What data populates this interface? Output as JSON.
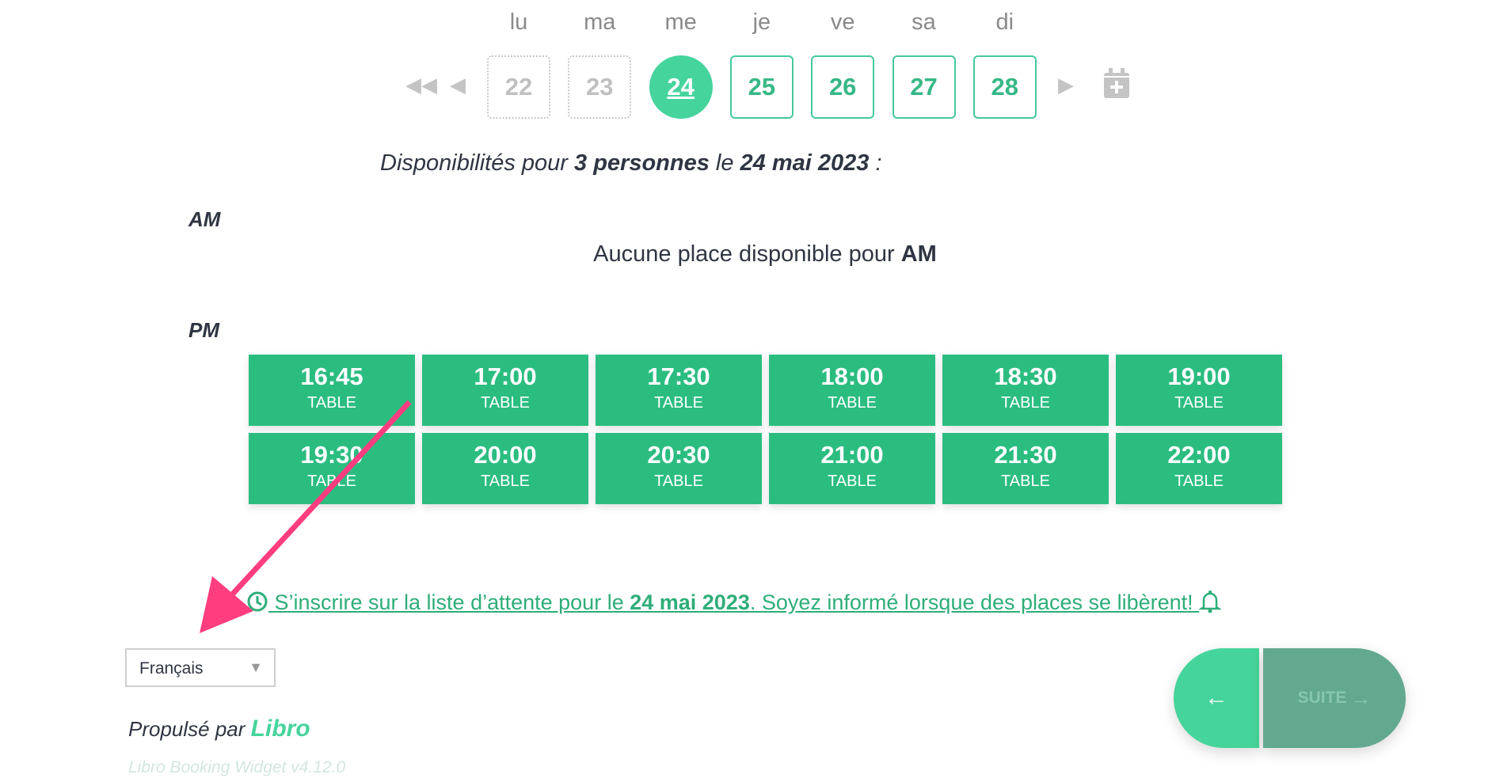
{
  "calendar": {
    "days": [
      {
        "label": "lu",
        "date": "22",
        "state": "past"
      },
      {
        "label": "ma",
        "date": "23",
        "state": "past"
      },
      {
        "label": "me",
        "date": "24",
        "state": "selected"
      },
      {
        "label": "je",
        "date": "25",
        "state": "available"
      },
      {
        "label": "ve",
        "date": "26",
        "state": "available"
      },
      {
        "label": "sa",
        "date": "27",
        "state": "available"
      },
      {
        "label": "di",
        "date": "28",
        "state": "available"
      }
    ],
    "icons": {
      "first": "double-chevron-left-icon",
      "prev": "chevron-left-icon",
      "next": "chevron-right-icon",
      "calendar": "calendar-plus-icon"
    }
  },
  "summary": {
    "prefix": "Disponibilités pour ",
    "people": "3 personnes",
    "mid": " le ",
    "date": "24 mai 2023",
    "suffix": " :"
  },
  "am": {
    "label": "AM",
    "none_prefix": "Aucune place disponible pour ",
    "none_bold": "AM"
  },
  "pm": {
    "label": "PM",
    "slots": [
      {
        "time": "16:45",
        "type": "TABLE"
      },
      {
        "time": "17:00",
        "type": "TABLE"
      },
      {
        "time": "17:30",
        "type": "TABLE"
      },
      {
        "time": "18:00",
        "type": "TABLE"
      },
      {
        "time": "18:30",
        "type": "TABLE"
      },
      {
        "time": "19:00",
        "type": "TABLE"
      },
      {
        "time": "19:30",
        "type": "TABLE"
      },
      {
        "time": "20:00",
        "type": "TABLE"
      },
      {
        "time": "20:30",
        "type": "TABLE"
      },
      {
        "time": "21:00",
        "type": "TABLE"
      },
      {
        "time": "21:30",
        "type": "TABLE"
      },
      {
        "time": "22:00",
        "type": "TABLE"
      }
    ]
  },
  "waitlist": {
    "prefix": " S’inscrire sur la liste d’attente pour le ",
    "date": "24 mai 2023",
    "suffix": ". Soyez informé lorsque des places se libèrent!"
  },
  "footer": {
    "language": "Français",
    "powered": "Propulsé par ",
    "brand": "Libro",
    "version": "Libro Booking Widget v4.12.0"
  },
  "buttons": {
    "back": "←",
    "next": "SUITE",
    "next_arrow": "→"
  },
  "colors": {
    "accent": "#45d49b",
    "slot": "#2bbd80",
    "link": "#2eae78",
    "next_disabled": "#62a98f",
    "annotation_arrow": "#ff3d7f"
  }
}
